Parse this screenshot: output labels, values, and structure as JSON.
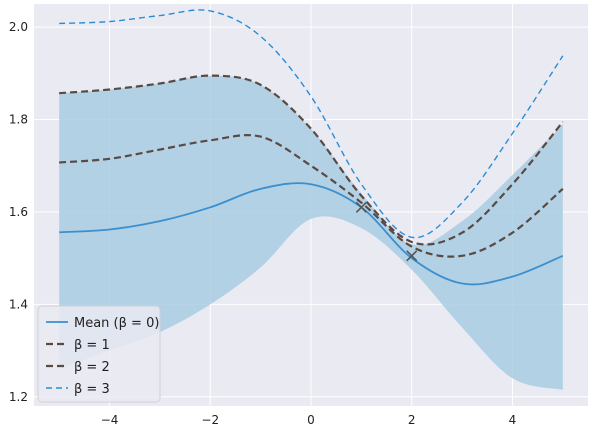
{
  "chart_data": {
    "type": "line",
    "title": "",
    "xlabel": "",
    "ylabel": "",
    "xlim": [
      -5.5,
      5.5
    ],
    "ylim": [
      1.18,
      2.05
    ],
    "grid": true,
    "legend_position": "lower-left",
    "colors": {
      "plot_bg": "#eaeaf2",
      "grid": "#ffffff",
      "mean": "#3a8fcf",
      "band": "#a9cce3",
      "dashed": "#5a4a44",
      "beta3": "#2a8cd6"
    },
    "x_ticks": [
      {
        "value": -4,
        "label": "−4"
      },
      {
        "value": -2,
        "label": "−2"
      },
      {
        "value": 0,
        "label": "0"
      },
      {
        "value": 2,
        "label": "2"
      },
      {
        "value": 4,
        "label": "4"
      }
    ],
    "y_ticks": [
      {
        "value": 1.2,
        "label": "1.2"
      },
      {
        "value": 1.4,
        "label": "1.4"
      },
      {
        "value": 1.6,
        "label": "1.6"
      },
      {
        "value": 1.8,
        "label": "1.8"
      },
      {
        "value": 2.0,
        "label": "2.0"
      }
    ],
    "x": [
      -5,
      -4,
      -3,
      -2,
      -1,
      0,
      1,
      2,
      3,
      4,
      5
    ],
    "band": {
      "upper": [
        1.857,
        1.865,
        1.878,
        1.895,
        1.875,
        1.78,
        1.64,
        1.53,
        1.58,
        1.68,
        1.79
      ],
      "lower": [
        1.26,
        1.3,
        1.34,
        1.4,
        1.48,
        1.585,
        1.565,
        1.475,
        1.35,
        1.24,
        1.215
      ]
    },
    "series": [
      {
        "name": "Mean (β = 0)",
        "style": "solid",
        "values": [
          1.556,
          1.562,
          1.58,
          1.61,
          1.65,
          1.66,
          1.61,
          1.5,
          1.445,
          1.46,
          1.505
        ]
      },
      {
        "name": "β = 1",
        "style": "dashed",
        "values": [
          1.707,
          1.715,
          1.735,
          1.755,
          1.763,
          1.7,
          1.62,
          1.525,
          1.505,
          1.555,
          1.65
        ]
      },
      {
        "name": "β = 2",
        "style": "dashed",
        "values": [
          1.857,
          1.865,
          1.878,
          1.895,
          1.875,
          1.78,
          1.635,
          1.535,
          1.555,
          1.66,
          1.795
        ]
      },
      {
        "name": "β = 3",
        "style": "dashed-thin",
        "values": [
          2.008,
          2.012,
          2.025,
          2.035,
          1.98,
          1.85,
          1.66,
          1.545,
          1.62,
          1.77,
          1.938
        ]
      }
    ],
    "observations": [
      {
        "x": 1,
        "y": 1.61
      },
      {
        "x": 2,
        "y": 1.505
      }
    ],
    "legend": [
      {
        "label": "Mean (β = 0)",
        "series": 0
      },
      {
        "label": "β = 1",
        "series": 1
      },
      {
        "label": "β = 2",
        "series": 2
      },
      {
        "label": "β = 3",
        "series": 3
      }
    ]
  }
}
